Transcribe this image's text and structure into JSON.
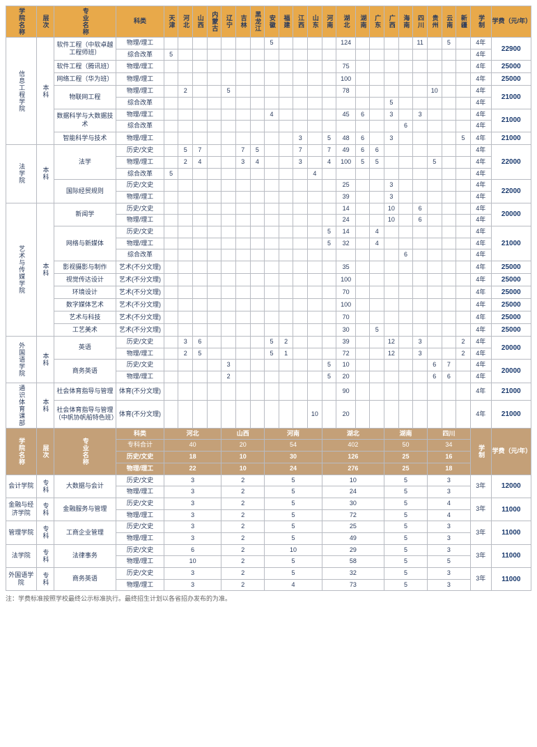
{
  "colors": {
    "header_bg": "#e8a94a",
    "header2_bg": "#c4a078",
    "border": "#b8bbc2",
    "text": "#2a3b5c",
    "tuition_text": "#1a3a6e"
  },
  "top_headers": {
    "college": "学院名称",
    "level": "层次",
    "major": "专业名称",
    "category": "科类",
    "provinces": [
      "天津",
      "河北",
      "山西",
      "内蒙古",
      "辽宁",
      "吉林",
      "黑龙江",
      "安徽",
      "福建",
      "江西",
      "山东",
      "河南",
      "湖北",
      "湖南",
      "广东",
      "广西",
      "海南",
      "四川",
      "贵州",
      "云南",
      "新疆"
    ],
    "duration": "学制",
    "tuition": "学费（元/年）"
  },
  "colleges": [
    {
      "name": "信息工程学院",
      "level": "本科",
      "rows": [
        {
          "major": "软件工程（中软卓越工程师班）",
          "span": 2,
          "cat": "物理/理工",
          "v": [
            "",
            "",
            "",
            "",
            "",
            "",
            "",
            "5",
            "",
            "",
            "",
            "",
            "124",
            "",
            "",
            "",
            "",
            "11",
            "",
            "5",
            ""
          ],
          "dur": "4年",
          "tuition": "22900"
        },
        {
          "cat": "综合改革",
          "v": [
            "5",
            "",
            "",
            "",
            "",
            "",
            "",
            "",
            "",
            "",
            "",
            "",
            "",
            "",
            "",
            "",
            "",
            "",
            "",
            "",
            ""
          ],
          "dur": "4年"
        },
        {
          "major": "软件工程（腾讯班）",
          "span": 1,
          "cat": "物理/理工",
          "v": [
            "",
            "",
            "",
            "",
            "",
            "",
            "",
            "",
            "",
            "",
            "",
            "",
            "75",
            "",
            "",
            "",
            "",
            "",
            "",
            "",
            ""
          ],
          "dur": "4年",
          "tuition": "25000"
        },
        {
          "major": "网络工程（华为班）",
          "span": 1,
          "cat": "物理/理工",
          "v": [
            "",
            "",
            "",
            "",
            "",
            "",
            "",
            "",
            "",
            "",
            "",
            "",
            "100",
            "",
            "",
            "",
            "",
            "",
            "",
            "",
            ""
          ],
          "dur": "4年",
          "tuition": "25000"
        },
        {
          "major": "物联网工程",
          "span": 2,
          "cat": "物理/理工",
          "v": [
            "",
            "2",
            "",
            "",
            "5",
            "",
            "",
            "",
            "",
            "",
            "",
            "",
            "78",
            "",
            "",
            "",
            "",
            "",
            "10",
            "",
            ""
          ],
          "dur": "4年",
          "tuition": "21000"
        },
        {
          "cat": "综合改革",
          "v": [
            "",
            "",
            "",
            "",
            "",
            "",
            "",
            "",
            "",
            "",
            "",
            "",
            "",
            "",
            "",
            "5",
            "",
            "",
            "",
            "",
            ""
          ],
          "dur": "4年"
        },
        {
          "major": "数据科学与大数据技术",
          "span": 2,
          "cat": "物理/理工",
          "v": [
            "",
            "",
            "",
            "",
            "",
            "",
            "",
            "4",
            "",
            "",
            "",
            "",
            "45",
            "6",
            "",
            "3",
            "",
            "3",
            "",
            "",
            ""
          ],
          "dur": "4年",
          "tuition": "21000"
        },
        {
          "cat": "综合改革",
          "v": [
            "",
            "",
            "",
            "",
            "",
            "",
            "",
            "",
            "",
            "",
            "",
            "",
            "",
            "",
            "",
            "",
            "6",
            "",
            "",
            "",
            ""
          ],
          "dur": "4年"
        },
        {
          "major": "智能科学与技术",
          "span": 1,
          "cat": "物理/理工",
          "v": [
            "",
            "",
            "",
            "",
            "",
            "",
            "",
            "",
            "",
            "3",
            "",
            "5",
            "48",
            "6",
            "",
            "3",
            "",
            "",
            "",
            "",
            "5"
          ],
          "dur": "4年",
          "tuition": "21000"
        }
      ]
    },
    {
      "name": "法学院",
      "level": "本科",
      "rows": [
        {
          "major": "法学",
          "span": 3,
          "cat": "历史/文史",
          "v": [
            "",
            "5",
            "7",
            "",
            "",
            "7",
            "5",
            "",
            "",
            "7",
            "",
            "7",
            "49",
            "6",
            "6",
            "",
            "",
            "",
            "",
            "",
            ""
          ],
          "dur": "4年",
          "tuition": "22000"
        },
        {
          "cat": "物理/理工",
          "v": [
            "",
            "2",
            "4",
            "",
            "",
            "3",
            "4",
            "",
            "",
            "3",
            "",
            "4",
            "100",
            "5",
            "5",
            "",
            "",
            "",
            "5",
            "",
            ""
          ],
          "dur": "4年"
        },
        {
          "cat": "综合改革",
          "v": [
            "5",
            "",
            "",
            "",
            "",
            "",
            "",
            "",
            "",
            "",
            "4",
            "",
            "",
            "",
            "",
            "",
            "",
            "",
            "",
            "",
            ""
          ],
          "dur": "4年"
        },
        {
          "major": "国际经贸规则",
          "span": 2,
          "cat": "历史/文史",
          "v": [
            "",
            "",
            "",
            "",
            "",
            "",
            "",
            "",
            "",
            "",
            "",
            "",
            "25",
            "",
            "",
            "3",
            "",
            "",
            "",
            "",
            ""
          ],
          "dur": "4年",
          "tuition": "22000"
        },
        {
          "cat": "物理/理工",
          "v": [
            "",
            "",
            "",
            "",
            "",
            "",
            "",
            "",
            "",
            "",
            "",
            "",
            "39",
            "",
            "",
            "3",
            "",
            "",
            "",
            "",
            ""
          ],
          "dur": "4年"
        }
      ]
    },
    {
      "name": "艺术与传媒学院",
      "level": "本科",
      "rows": [
        {
          "major": "新闻学",
          "span": 2,
          "cat": "历史/文史",
          "v": [
            "",
            "",
            "",
            "",
            "",
            "",
            "",
            "",
            "",
            "",
            "",
            "",
            "14",
            "",
            "",
            "10",
            "",
            "6",
            "",
            "",
            ""
          ],
          "dur": "4年",
          "tuition": "20000"
        },
        {
          "cat": "物理/理工",
          "v": [
            "",
            "",
            "",
            "",
            "",
            "",
            "",
            "",
            "",
            "",
            "",
            "",
            "24",
            "",
            "",
            "10",
            "",
            "6",
            "",
            "",
            ""
          ],
          "dur": "4年"
        },
        {
          "major": "网络与新媒体",
          "span": 3,
          "cat": "历史/文史",
          "v": [
            "",
            "",
            "",
            "",
            "",
            "",
            "",
            "",
            "",
            "",
            "",
            "5",
            "14",
            "",
            "4",
            "",
            "",
            "",
            "",
            "",
            ""
          ],
          "dur": "4年",
          "tuition": "21000"
        },
        {
          "cat": "物理/理工",
          "v": [
            "",
            "",
            "",
            "",
            "",
            "",
            "",
            "",
            "",
            "",
            "",
            "5",
            "32",
            "",
            "4",
            "",
            "",
            "",
            "",
            "",
            ""
          ],
          "dur": "4年"
        },
        {
          "cat": "综合改革",
          "v": [
            "",
            "",
            "",
            "",
            "",
            "",
            "",
            "",
            "",
            "",
            "",
            "",
            "",
            "",
            "",
            "",
            "6",
            "",
            "",
            "",
            ""
          ],
          "dur": "4年"
        },
        {
          "major": "影视摄影与制作",
          "span": 1,
          "cat": "艺术(不分文理)",
          "v": [
            "",
            "",
            "",
            "",
            "",
            "",
            "",
            "",
            "",
            "",
            "",
            "",
            "35",
            "",
            "",
            "",
            "",
            "",
            "",
            "",
            ""
          ],
          "dur": "4年",
          "tuition": "25000"
        },
        {
          "major": "视觉传达设计",
          "span": 1,
          "cat": "艺术(不分文理)",
          "v": [
            "",
            "",
            "",
            "",
            "",
            "",
            "",
            "",
            "",
            "",
            "",
            "",
            "100",
            "",
            "",
            "",
            "",
            "",
            "",
            "",
            ""
          ],
          "dur": "4年",
          "tuition": "25000"
        },
        {
          "major": "环境设计",
          "span": 1,
          "cat": "艺术(不分文理)",
          "v": [
            "",
            "",
            "",
            "",
            "",
            "",
            "",
            "",
            "",
            "",
            "",
            "",
            "70",
            "",
            "",
            "",
            "",
            "",
            "",
            "",
            ""
          ],
          "dur": "4年",
          "tuition": "25000"
        },
        {
          "major": "数字媒体艺术",
          "span": 1,
          "cat": "艺术(不分文理)",
          "v": [
            "",
            "",
            "",
            "",
            "",
            "",
            "",
            "",
            "",
            "",
            "",
            "",
            "100",
            "",
            "",
            "",
            "",
            "",
            "",
            "",
            ""
          ],
          "dur": "4年",
          "tuition": "25000"
        },
        {
          "major": "艺术与科技",
          "span": 1,
          "cat": "艺术(不分文理)",
          "v": [
            "",
            "",
            "",
            "",
            "",
            "",
            "",
            "",
            "",
            "",
            "",
            "",
            "70",
            "",
            "",
            "",
            "",
            "",
            "",
            "",
            ""
          ],
          "dur": "4年",
          "tuition": "25000"
        },
        {
          "major": "工艺美术",
          "span": 1,
          "cat": "艺术(不分文理)",
          "v": [
            "",
            "",
            "",
            "",
            "",
            "",
            "",
            "",
            "",
            "",
            "",
            "",
            "30",
            "",
            "5",
            "",
            "",
            "",
            "",
            "",
            ""
          ],
          "dur": "4年",
          "tuition": "25000"
        }
      ]
    },
    {
      "name": "外国语学院",
      "level": "本科",
      "rows": [
        {
          "major": "英语",
          "span": 2,
          "cat": "历史/文史",
          "v": [
            "",
            "3",
            "6",
            "",
            "",
            "",
            "",
            "5",
            "2",
            "",
            "",
            "",
            "39",
            "",
            "",
            "12",
            "",
            "3",
            "",
            "",
            "2"
          ],
          "dur": "4年",
          "tuition": "20000"
        },
        {
          "cat": "物理/理工",
          "v": [
            "",
            "2",
            "5",
            "",
            "",
            "",
            "",
            "5",
            "1",
            "",
            "",
            "",
            "72",
            "",
            "",
            "12",
            "",
            "3",
            "",
            "",
            "2"
          ],
          "dur": "4年"
        },
        {
          "major": "商务英语",
          "span": 2,
          "cat": "历史/文史",
          "v": [
            "",
            "",
            "",
            "",
            "3",
            "",
            "",
            "",
            "",
            "",
            "",
            "5",
            "10",
            "",
            "",
            "",
            "",
            "",
            "6",
            "7",
            ""
          ],
          "dur": "4年",
          "tuition": "20000"
        },
        {
          "cat": "物理/理工",
          "v": [
            "",
            "",
            "",
            "",
            "2",
            "",
            "",
            "",
            "",
            "",
            "",
            "5",
            "20",
            "",
            "",
            "",
            "",
            "",
            "6",
            "6",
            ""
          ],
          "dur": "4年"
        }
      ]
    },
    {
      "name": "通识体育课部",
      "level": "本科",
      "rows": [
        {
          "major": "社会体育指导与管理",
          "span": 1,
          "cat": "体育(不分文理)",
          "v": [
            "",
            "",
            "",
            "",
            "",
            "",
            "",
            "",
            "",
            "",
            "",
            "",
            "90",
            "",
            "",
            "",
            "",
            "",
            "",
            "",
            ""
          ],
          "dur": "4年",
          "tuition": "21000"
        },
        {
          "major": "社会体育指导与管理（中帆协帆船特色班）",
          "span": 1,
          "cat": "体育(不分文理)",
          "v": [
            "",
            "",
            "",
            "",
            "",
            "",
            "",
            "",
            "",
            "",
            "10",
            "",
            "20",
            "",
            "",
            "",
            "",
            "",
            "",
            "",
            ""
          ],
          "dur": "4年",
          "tuition": "21000"
        }
      ]
    }
  ],
  "bottom_headers": {
    "college": "学院名称",
    "level": "层次",
    "major": "专业名称",
    "category": "科类",
    "provinces": [
      "河北",
      "山西",
      "河南",
      "湖北",
      "湖南",
      "四川"
    ],
    "duration": "学制",
    "tuition": "学费（元/年）",
    "total_label": "专科合计",
    "totals": [
      "40",
      "20",
      "54",
      "402",
      "50",
      "34"
    ],
    "h1": "历史/文史",
    "h1v": [
      "18",
      "10",
      "30",
      "126",
      "25",
      "16"
    ],
    "h2": "物理/理工",
    "h2v": [
      "22",
      "10",
      "24",
      "276",
      "25",
      "18"
    ]
  },
  "bottom_colleges": [
    {
      "name": "会计学院",
      "level": "专科",
      "major": "大数据与会计",
      "rows": [
        {
          "cat": "历史/文史",
          "v": [
            "3",
            "2",
            "5",
            "10",
            "5",
            "3"
          ]
        },
        {
          "cat": "物理/理工",
          "v": [
            "3",
            "2",
            "5",
            "24",
            "5",
            "3"
          ]
        }
      ],
      "dur": "3年",
      "tuition": "12000"
    },
    {
      "name": "金融与经济学院",
      "level": "专科",
      "major": "金融服务与管理",
      "rows": [
        {
          "cat": "历史/文史",
          "v": [
            "3",
            "2",
            "5",
            "30",
            "5",
            "4"
          ]
        },
        {
          "cat": "物理/理工",
          "v": [
            "3",
            "2",
            "5",
            "72",
            "5",
            "4"
          ]
        }
      ],
      "dur": "3年",
      "tuition": "11000"
    },
    {
      "name": "管理学院",
      "level": "专科",
      "major": "工商企业管理",
      "rows": [
        {
          "cat": "历史/文史",
          "v": [
            "3",
            "2",
            "5",
            "25",
            "5",
            "3"
          ]
        },
        {
          "cat": "物理/理工",
          "v": [
            "3",
            "2",
            "5",
            "49",
            "5",
            "3"
          ]
        }
      ],
      "dur": "3年",
      "tuition": "11000"
    },
    {
      "name": "法学院",
      "level": "专科",
      "major": "法律事务",
      "rows": [
        {
          "cat": "历史/文史",
          "v": [
            "6",
            "2",
            "10",
            "29",
            "5",
            "3"
          ]
        },
        {
          "cat": "物理/理工",
          "v": [
            "10",
            "2",
            "5",
            "58",
            "5",
            "5"
          ]
        }
      ],
      "dur": "3年",
      "tuition": "11000"
    },
    {
      "name": "外国语学院",
      "level": "专科",
      "major": "商务英语",
      "rows": [
        {
          "cat": "历史/文史",
          "v": [
            "3",
            "2",
            "5",
            "32",
            "5",
            "3"
          ]
        },
        {
          "cat": "物理/理工",
          "v": [
            "3",
            "2",
            "4",
            "73",
            "5",
            "3"
          ]
        }
      ],
      "dur": "3年",
      "tuition": "11000"
    }
  ],
  "footnote": "注：学费标准按照学校最终公示标准执行。最终招生计划以各省招办发布的为准。"
}
